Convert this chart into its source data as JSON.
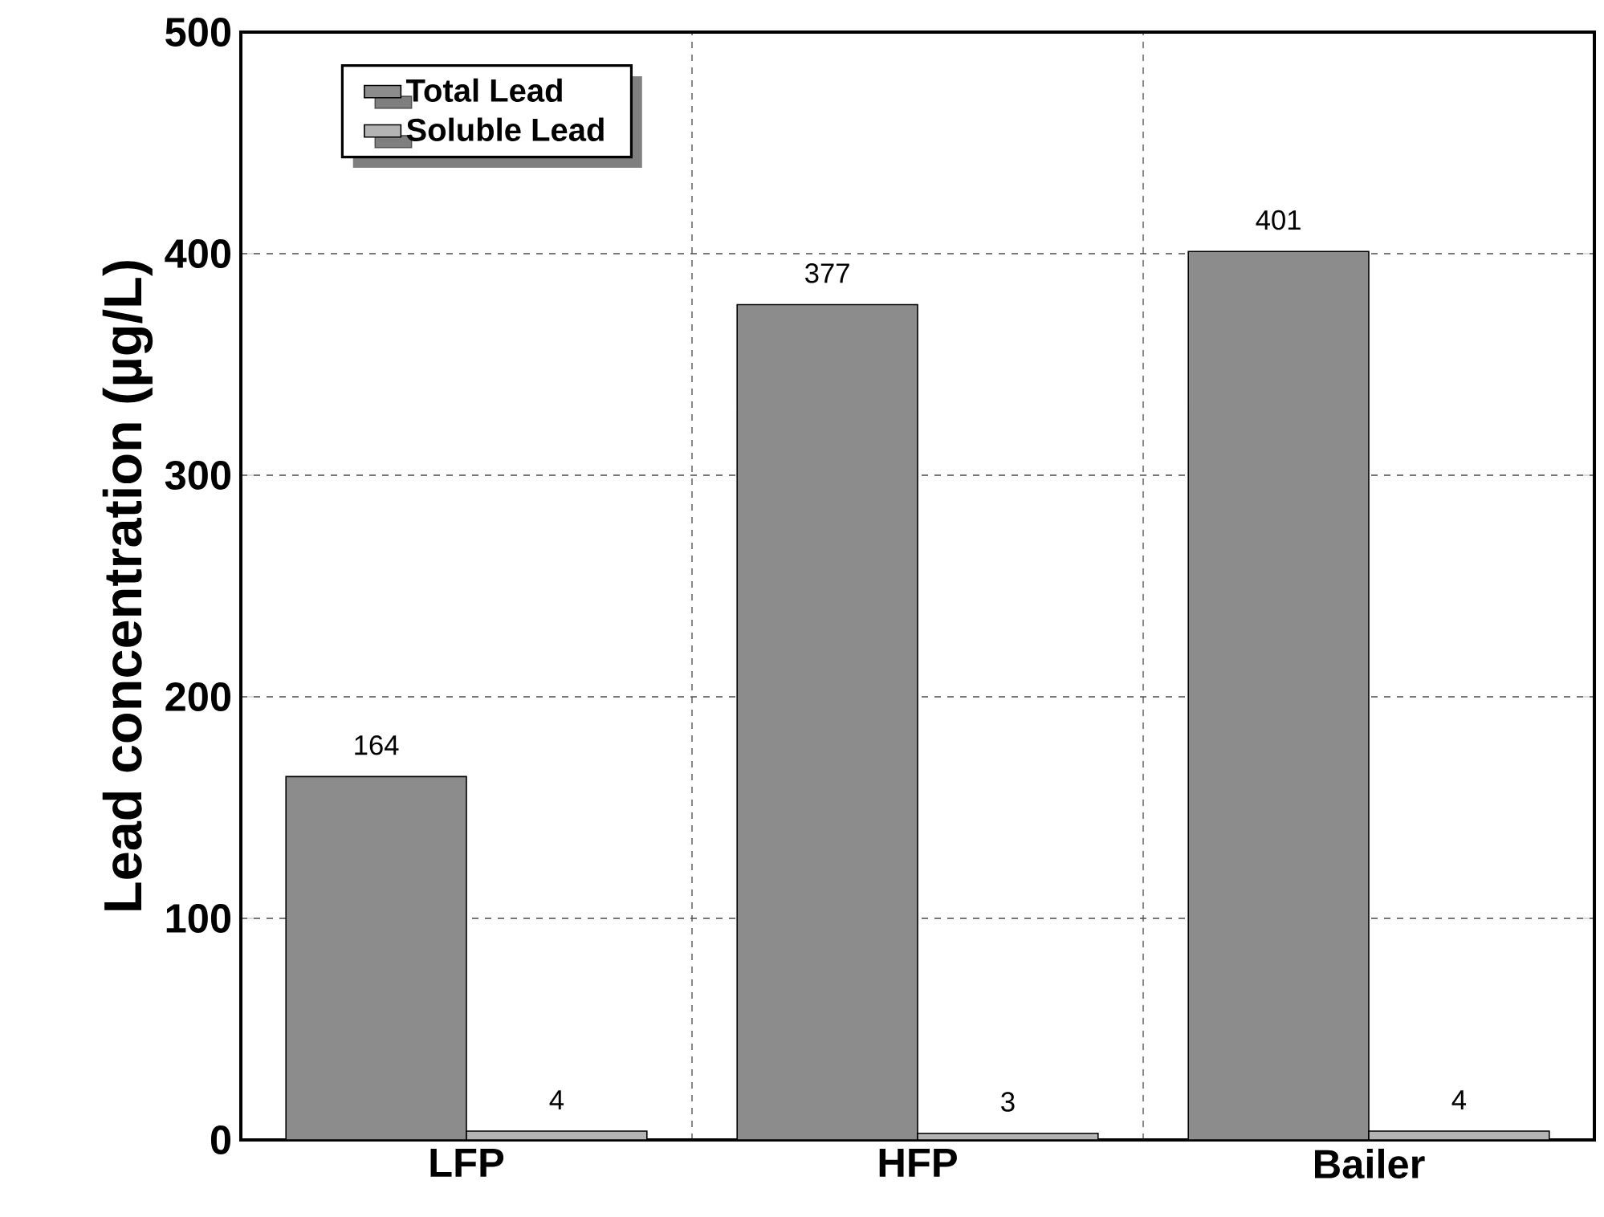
{
  "chart_data": {
    "type": "bar",
    "ylabel": "Lead concentration (µg/L)",
    "categories": [
      "LFP",
      "HFP",
      "Bailer"
    ],
    "series": [
      {
        "name": "Total Lead",
        "color": "#8c8c8c",
        "values": [
          164,
          377,
          401
        ]
      },
      {
        "name": "Soluble Lead",
        "color": "#b4b4b4",
        "values": [
          4,
          3,
          4
        ]
      }
    ],
    "ylim": [
      0,
      500
    ],
    "yticks": [
      0,
      100,
      200,
      300,
      400,
      500
    ],
    "grid": true,
    "legend": "top left",
    "data_labels": true
  }
}
